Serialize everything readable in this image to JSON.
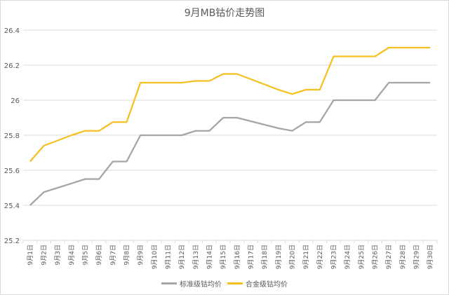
{
  "chart_data": {
    "type": "line",
    "title": "9月MB钴价走势图",
    "xlabel": "",
    "ylabel": "",
    "ylim": [
      25.2,
      26.4
    ],
    "yticks": [
      "25.2",
      "25.4",
      "25.6",
      "25.8",
      "26",
      "26.2",
      "26.4"
    ],
    "grid": true,
    "legend_position": "bottom",
    "categories": [
      "9月1日",
      "9月2日",
      "9月3日",
      "9月4日",
      "9月5日",
      "9月6日",
      "9月7日",
      "9月8日",
      "9月9日",
      "9月10日",
      "9月11日",
      "9月12日",
      "9月13日",
      "9月14日",
      "9月15日",
      "9月16日",
      "9月17日",
      "9月18日",
      "9月19日",
      "9月20日",
      "9月21日",
      "9月22日",
      "9月23日",
      "9月24日",
      "9月25日",
      "9月26日",
      "9月27日",
      "9月28日",
      "9月29日",
      "9月30日"
    ],
    "series": [
      {
        "name": "标准级钴均价",
        "color": "#a5a5a5",
        "values": [
          25.4,
          25.475,
          25.5,
          25.525,
          25.55,
          25.55,
          25.65,
          25.65,
          25.8,
          25.8,
          25.8,
          25.8,
          25.825,
          25.825,
          25.9,
          25.9,
          25.88,
          25.86,
          25.84,
          25.825,
          25.875,
          25.875,
          26.0,
          26.0,
          26.0,
          26.0,
          26.1,
          26.1,
          26.1,
          26.1
        ]
      },
      {
        "name": "合金级钴均价",
        "color": "#f5c021",
        "values": [
          25.65,
          25.74,
          25.77,
          25.8,
          25.825,
          25.825,
          25.875,
          25.875,
          26.1,
          26.1,
          26.1,
          26.1,
          26.11,
          26.11,
          26.15,
          26.15,
          26.12,
          26.09,
          26.06,
          26.035,
          26.06,
          26.06,
          26.25,
          26.25,
          26.25,
          26.25,
          26.3,
          26.3,
          26.3,
          26.3
        ]
      }
    ]
  }
}
